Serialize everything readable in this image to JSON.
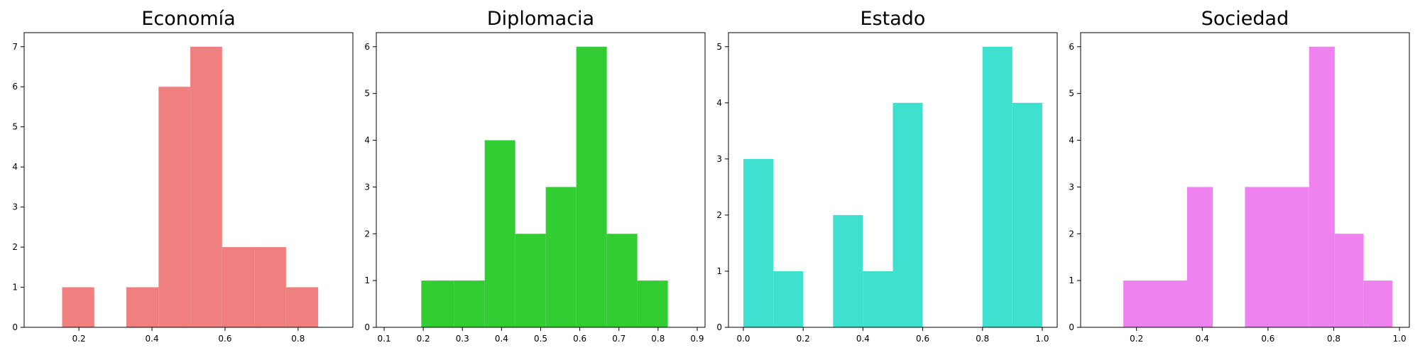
{
  "chart_data": [
    {
      "type": "bar",
      "title": "Economía",
      "color": "#f08080",
      "xlim": [
        0.05,
        0.95
      ],
      "ylim": [
        0,
        7.35
      ],
      "xticks": [
        {
          "v": 0.2,
          "label": "0.2"
        },
        {
          "v": 0.4,
          "label": "0.4"
        },
        {
          "v": 0.6,
          "label": "0.6"
        },
        {
          "v": 0.8,
          "label": "0.8"
        }
      ],
      "yticks": [
        {
          "v": 0,
          "label": "0"
        },
        {
          "v": 1,
          "label": "1"
        },
        {
          "v": 2,
          "label": "2"
        },
        {
          "v": 3,
          "label": "3"
        },
        {
          "v": 4,
          "label": "4"
        },
        {
          "v": 5,
          "label": "5"
        },
        {
          "v": 6,
          "label": "6"
        },
        {
          "v": 7,
          "label": "7"
        }
      ],
      "bins": [
        {
          "x0": 0.154,
          "x1": 0.242,
          "count": 1
        },
        {
          "x0": 0.242,
          "x1": 0.33,
          "count": 0
        },
        {
          "x0": 0.33,
          "x1": 0.418,
          "count": 1
        },
        {
          "x0": 0.418,
          "x1": 0.505,
          "count": 6
        },
        {
          "x0": 0.505,
          "x1": 0.592,
          "count": 7
        },
        {
          "x0": 0.592,
          "x1": 0.68,
          "count": 2
        },
        {
          "x0": 0.68,
          "x1": 0.767,
          "count": 2
        },
        {
          "x0": 0.767,
          "x1": 0.855,
          "count": 1
        }
      ]
    },
    {
      "type": "bar",
      "title": "Diplomacia",
      "color": "#32cd32",
      "xlim": [
        0.08,
        0.92
      ],
      "ylim": [
        0,
        6.3
      ],
      "xticks": [
        {
          "v": 0.1,
          "label": "0.1"
        },
        {
          "v": 0.2,
          "label": "0.2"
        },
        {
          "v": 0.3,
          "label": "0.3"
        },
        {
          "v": 0.4,
          "label": "0.4"
        },
        {
          "v": 0.5,
          "label": "0.5"
        },
        {
          "v": 0.6,
          "label": "0.6"
        },
        {
          "v": 0.7,
          "label": "0.7"
        },
        {
          "v": 0.8,
          "label": "0.8"
        },
        {
          "v": 0.9,
          "label": "0.9"
        }
      ],
      "yticks": [
        {
          "v": 0,
          "label": "0"
        },
        {
          "v": 1,
          "label": "1"
        },
        {
          "v": 2,
          "label": "2"
        },
        {
          "v": 3,
          "label": "3"
        },
        {
          "v": 4,
          "label": "4"
        },
        {
          "v": 5,
          "label": "5"
        },
        {
          "v": 6,
          "label": "6"
        }
      ],
      "bins": [
        {
          "x0": 0.195,
          "x1": 0.278,
          "count": 1
        },
        {
          "x0": 0.278,
          "x1": 0.357,
          "count": 1
        },
        {
          "x0": 0.357,
          "x1": 0.435,
          "count": 4
        },
        {
          "x0": 0.435,
          "x1": 0.513,
          "count": 2
        },
        {
          "x0": 0.513,
          "x1": 0.591,
          "count": 3
        },
        {
          "x0": 0.591,
          "x1": 0.669,
          "count": 6
        },
        {
          "x0": 0.669,
          "x1": 0.747,
          "count": 2
        },
        {
          "x0": 0.747,
          "x1": 0.825,
          "count": 1
        }
      ]
    },
    {
      "type": "bar",
      "title": "Estado",
      "color": "#40e0d0",
      "xlim": [
        -0.05,
        1.05
      ],
      "ylim": [
        0,
        5.25
      ],
      "xticks": [
        {
          "v": 0.0,
          "label": "0.0"
        },
        {
          "v": 0.2,
          "label": "0.2"
        },
        {
          "v": 0.4,
          "label": "0.4"
        },
        {
          "v": 0.6,
          "label": "0.6"
        },
        {
          "v": 0.8,
          "label": "0.8"
        },
        {
          "v": 1.0,
          "label": "1.0"
        }
      ],
      "yticks": [
        {
          "v": 0,
          "label": "0"
        },
        {
          "v": 1,
          "label": "1"
        },
        {
          "v": 2,
          "label": "2"
        },
        {
          "v": 3,
          "label": "3"
        },
        {
          "v": 4,
          "label": "4"
        },
        {
          "v": 5,
          "label": "5"
        }
      ],
      "bins": [
        {
          "x0": 0.0,
          "x1": 0.1,
          "count": 3
        },
        {
          "x0": 0.1,
          "x1": 0.2,
          "count": 1
        },
        {
          "x0": 0.2,
          "x1": 0.3,
          "count": 0
        },
        {
          "x0": 0.3,
          "x1": 0.4,
          "count": 2
        },
        {
          "x0": 0.4,
          "x1": 0.5,
          "count": 1
        },
        {
          "x0": 0.5,
          "x1": 0.6,
          "count": 4
        },
        {
          "x0": 0.6,
          "x1": 0.7,
          "count": 0
        },
        {
          "x0": 0.7,
          "x1": 0.8,
          "count": 0
        },
        {
          "x0": 0.8,
          "x1": 0.9,
          "count": 5
        },
        {
          "x0": 0.9,
          "x1": 1.0,
          "count": 4
        }
      ]
    },
    {
      "type": "bar",
      "title": "Sociedad",
      "color": "#ee82ee",
      "xlim": [
        0.03,
        1.03
      ],
      "ylim": [
        0,
        6.3
      ],
      "xticks": [
        {
          "v": 0.2,
          "label": "0.2"
        },
        {
          "v": 0.4,
          "label": "0.4"
        },
        {
          "v": 0.6,
          "label": "0.6"
        },
        {
          "v": 0.8,
          "label": "0.8"
        },
        {
          "v": 1.0,
          "label": "1.0"
        }
      ],
      "yticks": [
        {
          "v": 0,
          "label": "0"
        },
        {
          "v": 1,
          "label": "1"
        },
        {
          "v": 2,
          "label": "2"
        },
        {
          "v": 3,
          "label": "3"
        },
        {
          "v": 4,
          "label": "4"
        },
        {
          "v": 5,
          "label": "5"
        },
        {
          "v": 6,
          "label": "6"
        }
      ],
      "bins": [
        {
          "x0": 0.16,
          "x1": 0.247,
          "count": 1
        },
        {
          "x0": 0.247,
          "x1": 0.354,
          "count": 1
        },
        {
          "x0": 0.354,
          "x1": 0.432,
          "count": 3
        },
        {
          "x0": 0.432,
          "x1": 0.53,
          "count": 0
        },
        {
          "x0": 0.53,
          "x1": 0.725,
          "count": 3
        },
        {
          "x0": 0.725,
          "x1": 0.803,
          "count": 6
        },
        {
          "x0": 0.803,
          "x1": 0.891,
          "count": 2
        },
        {
          "x0": 0.891,
          "x1": 0.978,
          "count": 1
        }
      ]
    }
  ]
}
